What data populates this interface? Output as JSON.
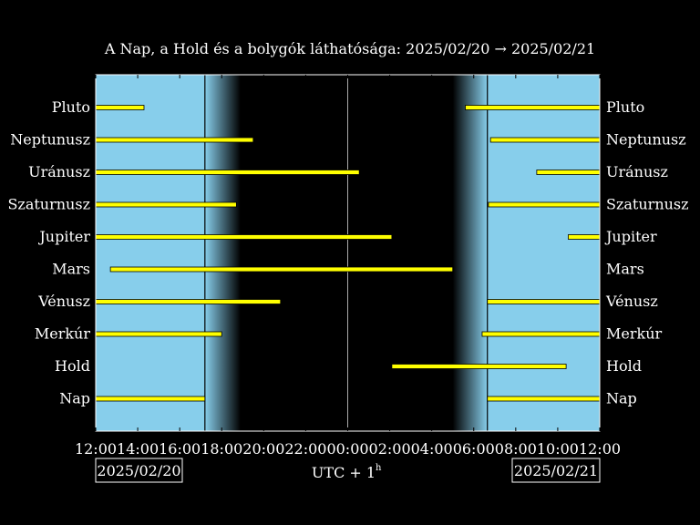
{
  "chart_data": {
    "type": "timeline",
    "title": "A Nap, a Hold és a bolygók láthatósága: 2025/02/20 → 2025/02/21",
    "xlabel": "UTC + 1",
    "xlabel_superscript": "h",
    "start_date_label": "2025/02/20",
    "end_date_label": "2025/02/21",
    "x_range_hours": [
      12,
      36
    ],
    "x_ticks": [
      {
        "h": 12,
        "label": "12:00"
      },
      {
        "h": 14,
        "label": "14:00"
      },
      {
        "h": 16,
        "label": "16:00"
      },
      {
        "h": 18,
        "label": "18:00"
      },
      {
        "h": 20,
        "label": "20:00"
      },
      {
        "h": 22,
        "label": "22:00"
      },
      {
        "h": 24,
        "label": "00:00"
      },
      {
        "h": 26,
        "label": "02:00"
      },
      {
        "h": 28,
        "label": "04:00"
      },
      {
        "h": 30,
        "label": "06:00"
      },
      {
        "h": 32,
        "label": "08:00"
      },
      {
        "h": 34,
        "label": "10:00"
      },
      {
        "h": 36,
        "label": "12:00"
      }
    ],
    "midnight_hour": 24,
    "sunset_hour": 17.2,
    "sunrise_hour": 30.65,
    "twilight_evening_end_hour": 18.9,
    "twilight_morning_start_hour": 29.0,
    "colors": {
      "day": "#87CEEB",
      "night": "#000000",
      "bar": "#FFFF00",
      "bar_edge": "#000000",
      "frame": "#FFFFFF"
    },
    "series": [
      {
        "name": "Pluto",
        "intervals": [
          [
            12,
            14.3
          ],
          [
            29.6,
            36
          ]
        ]
      },
      {
        "name": "Neptunusz",
        "intervals": [
          [
            12,
            19.5
          ],
          [
            30.8,
            36
          ]
        ]
      },
      {
        "name": "Uránusz",
        "intervals": [
          [
            12,
            24.55
          ],
          [
            33.0,
            36
          ]
        ]
      },
      {
        "name": "Szaturnusz",
        "intervals": [
          [
            12,
            18.7
          ],
          [
            30.7,
            36
          ]
        ]
      },
      {
        "name": "Jupiter",
        "intervals": [
          [
            12,
            26.1
          ],
          [
            34.5,
            36
          ]
        ]
      },
      {
        "name": "Mars",
        "intervals": [
          [
            12.7,
            29.0
          ]
        ]
      },
      {
        "name": "Vénusz",
        "intervals": [
          [
            12,
            20.8
          ],
          [
            30.65,
            36
          ]
        ]
      },
      {
        "name": "Merkúr",
        "intervals": [
          [
            12,
            18.0
          ],
          [
            30.4,
            36
          ]
        ]
      },
      {
        "name": "Hold",
        "intervals": [
          [
            26.1,
            34.4
          ]
        ]
      },
      {
        "name": "Nap",
        "intervals": [
          [
            12,
            17.2
          ],
          [
            30.65,
            36
          ]
        ]
      }
    ]
  }
}
